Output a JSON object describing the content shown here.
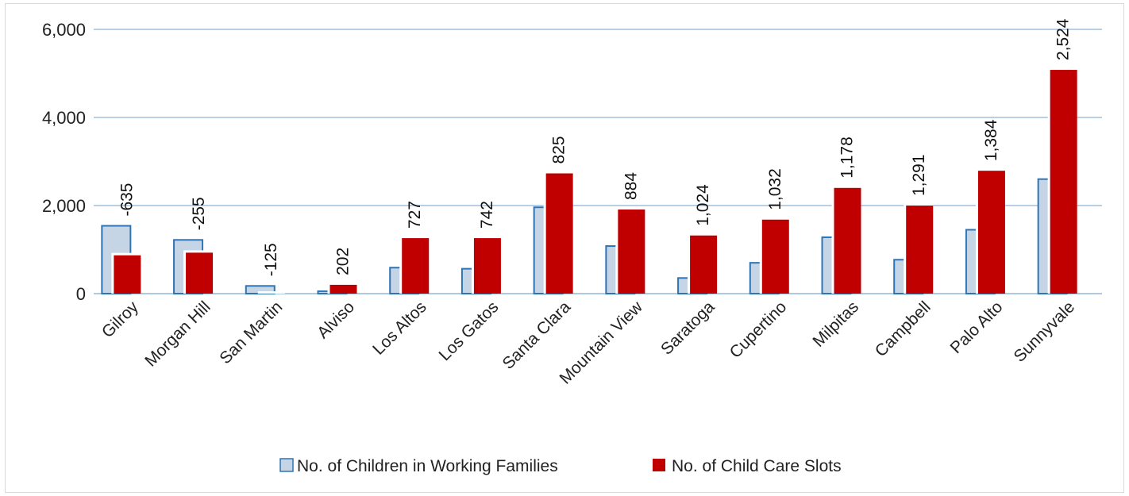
{
  "chart_data": {
    "type": "bar",
    "categories": [
      "Gilroy",
      "Morgan Hill",
      "San Martin",
      "Alviso",
      "Los Altos",
      "Los Gatos",
      "Santa Clara",
      "Mountain View",
      "Saratoga",
      "Cupertino",
      "Milpitas",
      "Campbell",
      "Palo Alto",
      "Sunnyvale"
    ],
    "series": [
      {
        "name": "No. of Children in Working Families",
        "values": [
          1540,
          1220,
          175,
          55,
          590,
          565,
          1960,
          1080,
          355,
          700,
          1280,
          770,
          1450,
          2600
        ],
        "color": "#c5d5e6",
        "border_color": "#2e75b6"
      },
      {
        "name": "No. of Child Care Slots",
        "values": [
          870,
          930,
          0,
          200,
          1260,
          1260,
          2730,
          1910,
          1320,
          1680,
          2400,
          2000,
          2790,
          5080
        ],
        "color": "#c00000"
      }
    ],
    "data_labels": [
      "-635",
      "-255",
      "-125",
      "202",
      "727",
      "742",
      "825",
      "884",
      "1,024",
      "1,032",
      "1,178",
      "1,291",
      "1,384",
      "2,524"
    ],
    "yticks": [
      "0",
      "2,000",
      "4,000",
      "6,000"
    ],
    "ytick_values": [
      0,
      2000,
      4000,
      6000
    ],
    "ylim": [
      0,
      6000
    ],
    "grid": true,
    "gridline_color": "#8eb4d8",
    "legend_position": "bottom"
  }
}
